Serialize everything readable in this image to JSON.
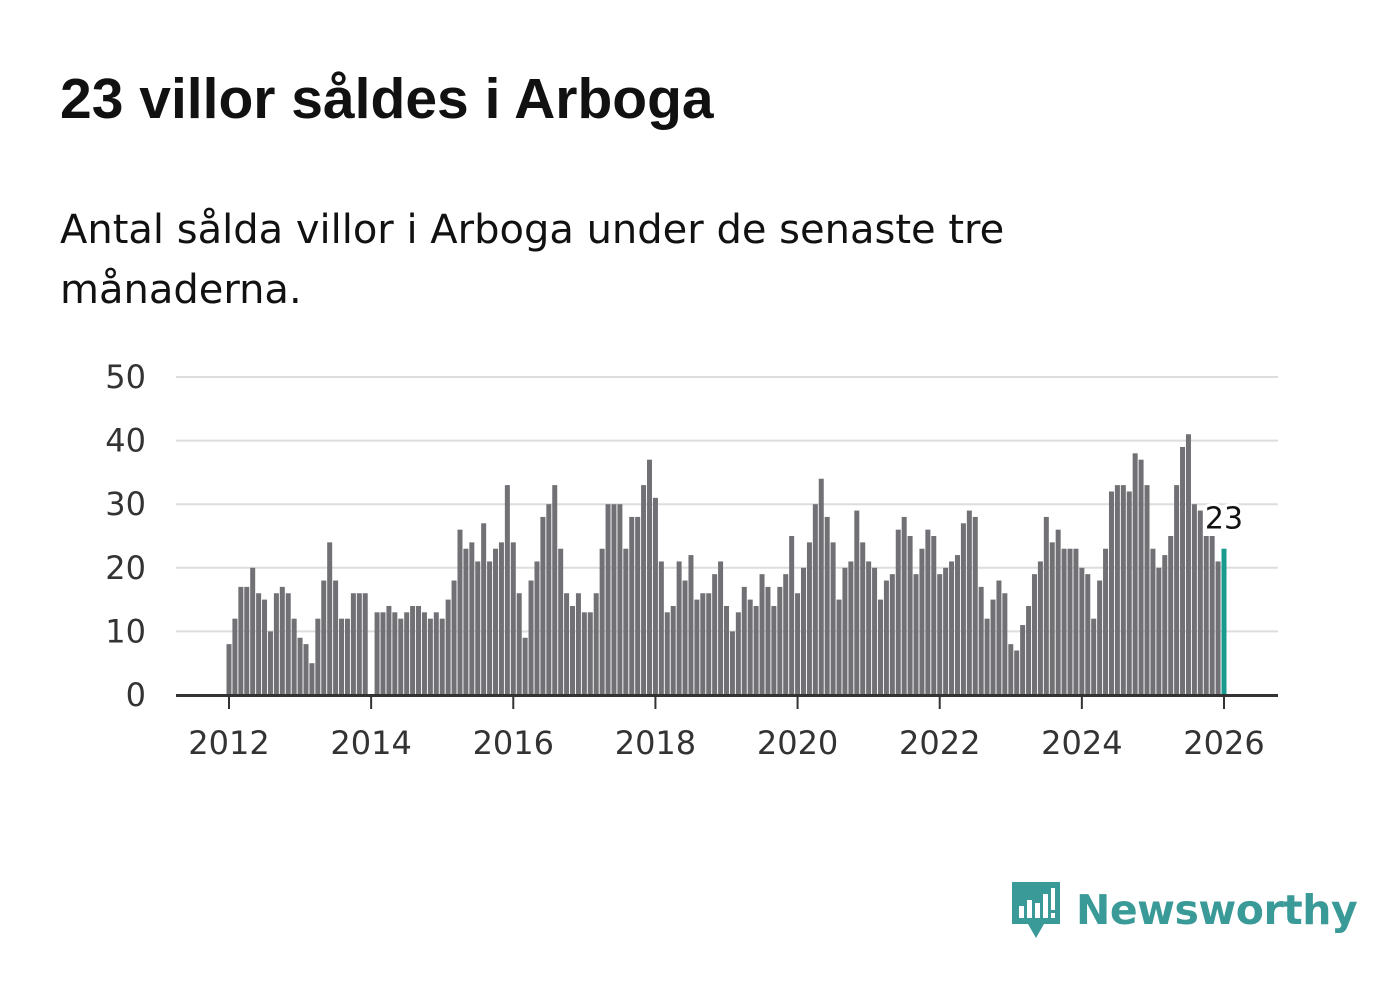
{
  "header": {
    "title": "23 villor såldes i Arboga",
    "subtitle": "Antal sålda villor i Arboga under de senaste tre månaderna."
  },
  "brand": {
    "name": "Newsworthy",
    "color": "#3a9a98"
  },
  "colors": {
    "bar": "#717075",
    "highlight": "#1a9a8e",
    "grid": "#dddddd",
    "axis": "#333333"
  },
  "chart_data": {
    "type": "bar",
    "title": "23 villor såldes i Arboga",
    "xlabel": "",
    "ylabel": "",
    "ylim": [
      0,
      50
    ],
    "yticks": [
      0,
      10,
      20,
      30,
      40,
      50
    ],
    "xticks": [
      "2012",
      "2014",
      "2016",
      "2018",
      "2020",
      "2022",
      "2024",
      "2026"
    ],
    "start": "2012-01",
    "frequency": "monthly",
    "highlight_last": true,
    "annotation": "23",
    "values": [
      8,
      12,
      17,
      17,
      20,
      16,
      15,
      10,
      16,
      17,
      16,
      12,
      9,
      8,
      5,
      12,
      18,
      24,
      18,
      12,
      12,
      16,
      16,
      16,
      null,
      13,
      13,
      14,
      13,
      12,
      13,
      14,
      14,
      13,
      12,
      13,
      12,
      15,
      18,
      26,
      23,
      24,
      21,
      27,
      21,
      23,
      24,
      33,
      24,
      16,
      9,
      18,
      21,
      28,
      30,
      33,
      23,
      16,
      14,
      16,
      13,
      13,
      16,
      23,
      30,
      30,
      30,
      23,
      28,
      28,
      33,
      37,
      31,
      21,
      13,
      14,
      21,
      18,
      22,
      15,
      16,
      16,
      19,
      21,
      14,
      10,
      13,
      17,
      15,
      14,
      19,
      17,
      14,
      17,
      19,
      25,
      16,
      20,
      24,
      30,
      34,
      28,
      24,
      15,
      20,
      21,
      29,
      24,
      21,
      20,
      15,
      18,
      19,
      26,
      28,
      25,
      19,
      23,
      26,
      25,
      19,
      20,
      21,
      22,
      27,
      29,
      28,
      17,
      12,
      15,
      18,
      16,
      8,
      7,
      11,
      14,
      19,
      21,
      28,
      24,
      26,
      23,
      23,
      23,
      20,
      19,
      12,
      18,
      23,
      32,
      33,
      33,
      32,
      38,
      37,
      33,
      23,
      20,
      22,
      25,
      33,
      39,
      41,
      30,
      29,
      25,
      25,
      21,
      23
    ]
  }
}
